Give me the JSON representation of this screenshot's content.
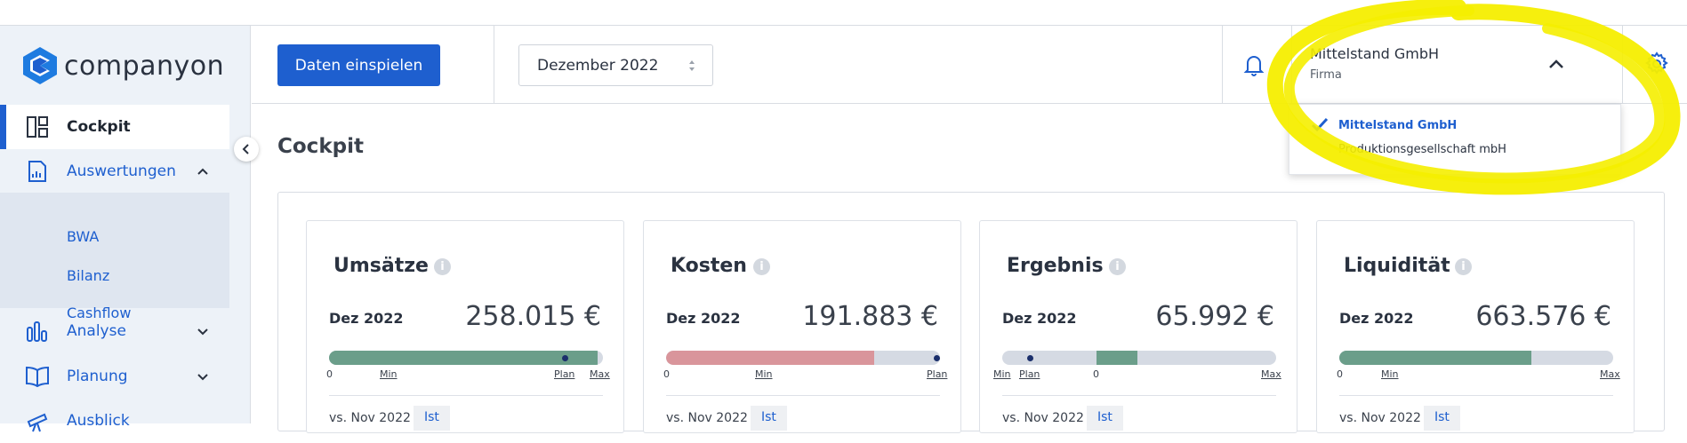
{
  "app": {
    "logo_text": "companyon"
  },
  "sidebar": {
    "items": [
      {
        "label": "Cockpit",
        "icon": "dashboard-icon",
        "active": true
      },
      {
        "label": "Auswertungen",
        "icon": "report-icon",
        "expanded": true,
        "subitems": [
          "BWA",
          "Bilanz",
          "Cashflow"
        ]
      },
      {
        "label": "Analyse",
        "icon": "bar-chart-icon"
      },
      {
        "label": "Planung",
        "icon": "book-open-icon"
      },
      {
        "label": "Ausblick",
        "icon": "telescope-icon"
      }
    ]
  },
  "header": {
    "import_button": "Daten einspielen",
    "month_select": "Dezember 2022",
    "company": {
      "name": "Mittelstand GmbH",
      "type": "Firma"
    },
    "dropdown": {
      "options": [
        {
          "name": "Mittelstand GmbH",
          "subtitle": "Produktionsgesellschaft mbH",
          "selected": true
        }
      ]
    }
  },
  "page": {
    "title": "Cockpit"
  },
  "cards": [
    {
      "title": "Umsätze",
      "period": "Dez 2022",
      "value": "258.015 €",
      "axis": [
        "0",
        "Min",
        "Plan",
        "Max"
      ],
      "vs": "vs. Nov 2022",
      "tag": "Ist",
      "fill_fraction": 0.98,
      "fill_color": "#6b9e8a"
    },
    {
      "title": "Kosten",
      "period": "Dez 2022",
      "value": "191.883 €",
      "axis": [
        "0",
        "Min",
        "Plan"
      ],
      "vs": "vs. Nov 2022",
      "tag": "Ist",
      "fill_fraction": 0.76,
      "fill_color": "#d9959b"
    },
    {
      "title": "Ergebnis",
      "period": "Dez 2022",
      "value": "65.992 €",
      "axis": [
        "Min",
        "Plan",
        "0",
        "Max"
      ],
      "vs": "vs. Nov 2022",
      "tag": "Ist",
      "fill_fraction": 0.15,
      "fill_color": "#6b9e8a"
    },
    {
      "title": "Liquidität",
      "period": "Dez 2022",
      "value": "663.576 €",
      "axis": [
        "0",
        "Min",
        "Max"
      ],
      "vs": "vs. Nov 2022",
      "tag": "Ist",
      "fill_fraction": 0.7,
      "fill_color": "#6b9e8a"
    }
  ],
  "colors": {
    "accent": "#1e5fcf",
    "highlight": "#f5ee00",
    "positive": "#6b9e8a",
    "negative": "#d9959b"
  }
}
